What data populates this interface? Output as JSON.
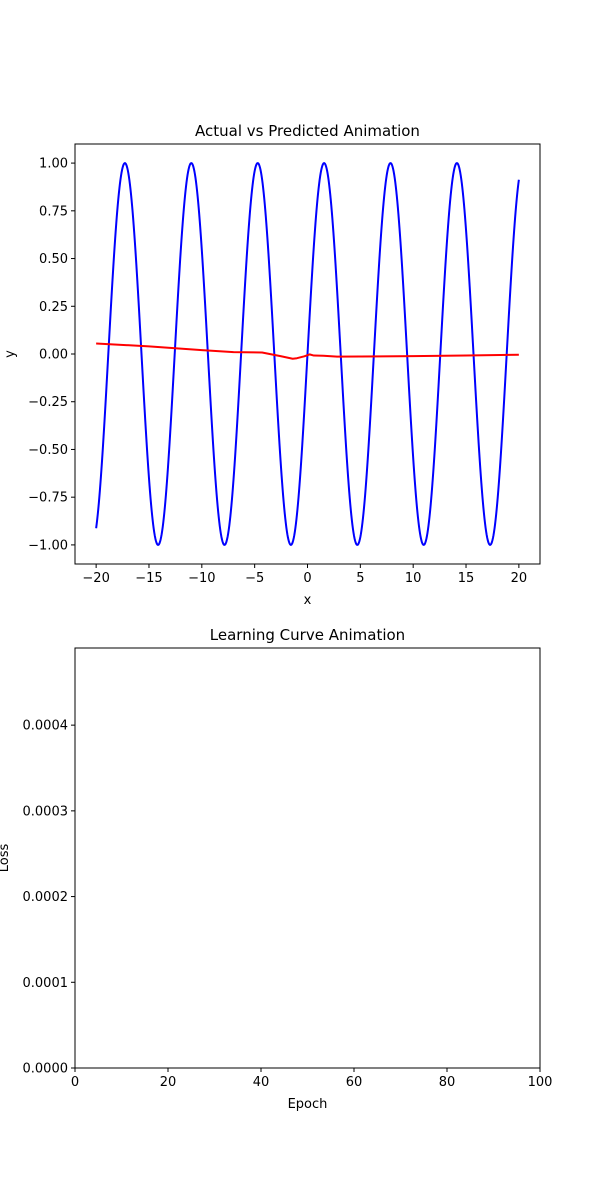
{
  "chart_data": [
    {
      "type": "line",
      "title": "Actual vs Predicted Animation",
      "xlabel": "x",
      "ylabel": "y",
      "xlim": [
        -22,
        22
      ],
      "ylim": [
        -1.1,
        1.1
      ],
      "xticks": [
        -20,
        -15,
        -10,
        -5,
        0,
        5,
        10,
        15,
        20
      ],
      "xtick_labels": [
        "−20",
        "−15",
        "−10",
        "−5",
        "0",
        "5",
        "10",
        "15",
        "20"
      ],
      "yticks": [
        -1.0,
        -0.75,
        -0.5,
        -0.25,
        0.0,
        0.25,
        0.5,
        0.75,
        1.0
      ],
      "ytick_labels": [
        "−1.00",
        "−0.75",
        "−0.50",
        "−0.25",
        "0.00",
        "0.25",
        "0.50",
        "0.75",
        "1.00"
      ],
      "grid": false,
      "series": [
        {
          "color": "#0000ff",
          "function": "sin(x)",
          "x_range": [
            -20,
            20
          ]
        },
        {
          "color": "#ff0000",
          "x": [
            -20,
            -15,
            -10,
            -7,
            -4.3,
            -2.5,
            -1.4,
            -1.0,
            -0.3,
            0.2,
            0.6,
            1.5,
            2.8,
            5,
            10,
            15,
            20
          ],
          "y": [
            0.055,
            0.04,
            0.02,
            0.01,
            0.008,
            -0.012,
            -0.025,
            -0.022,
            -0.012,
            -0.002,
            -0.008,
            -0.009,
            -0.014,
            -0.013,
            -0.011,
            -0.008,
            -0.004
          ]
        }
      ]
    },
    {
      "type": "line",
      "title": "Learning Curve Animation",
      "xlabel": "Epoch",
      "ylabel": "Loss",
      "xlim": [
        0,
        100
      ],
      "ylim": [
        0,
        0.00049
      ],
      "xticks": [
        0,
        20,
        40,
        60,
        80,
        100
      ],
      "xtick_labels": [
        "0",
        "20",
        "40",
        "60",
        "80",
        "100"
      ],
      "yticks": [
        0,
        0.0001,
        0.0002,
        0.0003,
        0.0004
      ],
      "ytick_labels": [
        "0.0000",
        "0.0001",
        "0.0002",
        "0.0003",
        "0.0004"
      ],
      "grid": false,
      "series": []
    }
  ]
}
